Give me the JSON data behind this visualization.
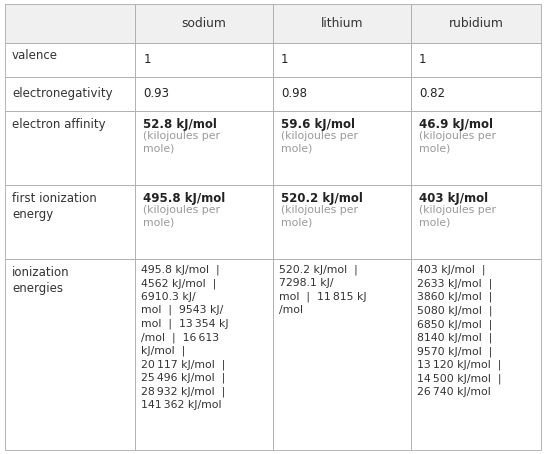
{
  "col_headers": [
    "",
    "sodium",
    "lithium",
    "rubidium"
  ],
  "row_labels": [
    "valence",
    "electronegativity",
    "electron affinity",
    "first ionization\nenergy",
    "ionization\nenergies"
  ],
  "cell_data": {
    "valence": [
      "1",
      "1",
      "1"
    ],
    "electronegativity": [
      "0.93",
      "0.98",
      "0.82"
    ],
    "electron affinity": {
      "sodium": {
        "main": "52.8 kJ/mol",
        "sub": "(kilojoules per\nmole)"
      },
      "lithium": {
        "main": "59.6 kJ/mol",
        "sub": "(kilojoules per\nmole)"
      },
      "rubidium": {
        "main": "46.9 kJ/mol",
        "sub": "(kilojoules per\nmole)"
      }
    },
    "first ionization\nenergy": {
      "sodium": {
        "main": "495.8 kJ/mol",
        "sub": "(kilojoules per\nmole)"
      },
      "lithium": {
        "main": "520.2 kJ/mol",
        "sub": "(kilojoules per\nmole)"
      },
      "rubidium": {
        "main": "403 kJ/mol",
        "sub": "(kilojoules per\nmole)"
      }
    },
    "ionization\nenergies": {
      "sodium": "495.8 kJ/mol  |\n4562 kJ/mol  |\n6910.3 kJ/\nmol  |  9543 kJ/\nmol  |  13 354 kJ\n/mol  |  16 613\nkJ/mol  |\n20 117 kJ/mol  |\n25 496 kJ/mol  |\n28 932 kJ/mol  |\n141 362 kJ/mol",
      "lithium": "520.2 kJ/mol  |\n7298.1 kJ/\nmol  |  11 815 kJ\n/mol",
      "rubidium": "403 kJ/mol  |\n2633 kJ/mol  |\n3860 kJ/mol  |\n5080 kJ/mol  |\n6850 kJ/mol  |\n8140 kJ/mol  |\n9570 kJ/mol  |\n13 120 kJ/mol  |\n14 500 kJ/mol  |\n26 740 kJ/mol"
    }
  },
  "header_bg": "#f0f0f0",
  "cell_bg": "#ffffff",
  "border_color": "#aaaaaa",
  "text_color": "#333333",
  "subtext_color": "#999999",
  "bold_color": "#222222",
  "fig_width": 5.46,
  "fig_height": 4.54,
  "dpi": 100
}
